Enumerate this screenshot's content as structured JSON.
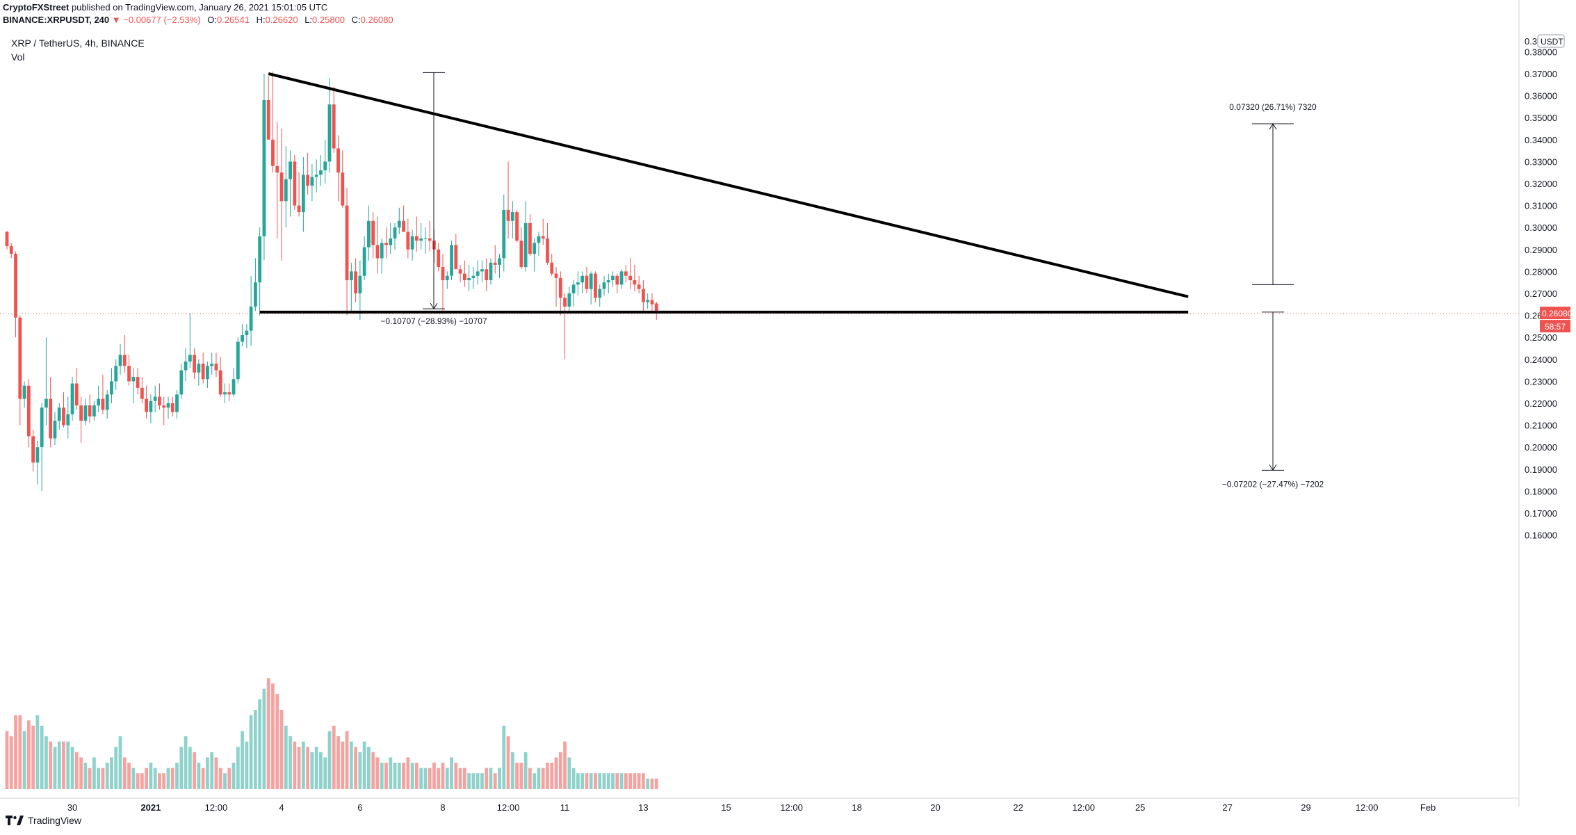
{
  "header": {
    "publisher": "CryptoFXStreet",
    "published_text": "published on TradingView.com, January 26, 2021 15:01:05 UTC",
    "symbol": "BINANCE:XRPUSDT, 240",
    "change": "▼ −0.00677 (−2.53%)",
    "open_label": "O:",
    "open": "0.26541",
    "high_label": "H:",
    "high": "0.26620",
    "low_label": "L:",
    "low": "0.25800",
    "close_label": "C:",
    "close": "0.26080"
  },
  "legend": {
    "title": "XRP / TetherUS, 4h, BINANCE",
    "volume": "Vol"
  },
  "footer": {
    "brand": "TradingView"
  },
  "colors": {
    "up": "#26a69a",
    "down": "#ef5350",
    "up_vol": "#8fd2cb",
    "down_vol": "#f5a3a1",
    "axis_text": "#131722",
    "trendline": "#000000"
  },
  "icons": {
    "footer_logo": "tradingview-logo-icon"
  },
  "chart_data": {
    "type": "candlestick",
    "currency": "USDT",
    "y_ticks": [
      "0.38000",
      "0.37000",
      "0.36000",
      "0.35000",
      "0.34000",
      "0.33000",
      "0.32000",
      "0.31000",
      "0.30000",
      "0.29000",
      "0.28000",
      "0.27000",
      "0.26000",
      "0.25000",
      "0.24000",
      "0.23000",
      "0.22000",
      "0.21000",
      "0.20000",
      "0.19000",
      "0.18000",
      "0.17000",
      "0.16000"
    ],
    "y_tick_top_partial": "0.3",
    "ylim": [
      0.1525,
      0.3935
    ],
    "x_ticks": [
      {
        "label": "30",
        "i": 15
      },
      {
        "label": "2021",
        "i": 33
      },
      {
        "label": "12:00",
        "i": 48
      },
      {
        "label": "4",
        "i": 63
      },
      {
        "label": "6",
        "i": 81
      },
      {
        "label": "8",
        "i": 100
      },
      {
        "label": "12:00",
        "i": 115
      },
      {
        "label": "11",
        "i": 128
      },
      {
        "label": "13",
        "i": 146
      },
      {
        "label": "15",
        "i": 165
      },
      {
        "label": "12:00",
        "i": 180
      },
      {
        "label": "18",
        "i": 195
      },
      {
        "label": "20",
        "i": 213
      },
      {
        "label": "22",
        "i": 232
      },
      {
        "label": "12:00",
        "i": 247
      },
      {
        "label": "25",
        "i": 260
      },
      {
        "label": "27",
        "i": 280
      },
      {
        "label": "29",
        "i": 298
      },
      {
        "label": "12:00",
        "i": 312
      },
      {
        "label": "Feb",
        "i": 326
      }
    ],
    "price_label": "0.26080",
    "countdown": "58:57",
    "candles": [
      [
        0.298,
        0.2985,
        0.29,
        0.2915,
        11
      ],
      [
        0.2915,
        0.293,
        0.286,
        0.288,
        10
      ],
      [
        0.288,
        0.289,
        0.25,
        0.259,
        14
      ],
      [
        0.259,
        0.26,
        0.21,
        0.222,
        14
      ],
      [
        0.222,
        0.23,
        0.218,
        0.228,
        11
      ],
      [
        0.228,
        0.231,
        0.2,
        0.205,
        13
      ],
      [
        0.205,
        0.208,
        0.189,
        0.193,
        12
      ],
      [
        0.193,
        0.203,
        0.183,
        0.2,
        14
      ],
      [
        0.2,
        0.22,
        0.18,
        0.218,
        12
      ],
      [
        0.218,
        0.25,
        0.21,
        0.222,
        10
      ],
      [
        0.222,
        0.232,
        0.2,
        0.204,
        9
      ],
      [
        0.204,
        0.216,
        0.201,
        0.212,
        8
      ],
      [
        0.212,
        0.22,
        0.208,
        0.218,
        9
      ],
      [
        0.218,
        0.225,
        0.209,
        0.21,
        9
      ],
      [
        0.21,
        0.223,
        0.204,
        0.215,
        9
      ],
      [
        0.215,
        0.232,
        0.212,
        0.229,
        8
      ],
      [
        0.229,
        0.236,
        0.217,
        0.219,
        7
      ],
      [
        0.219,
        0.223,
        0.202,
        0.212,
        6
      ],
      [
        0.212,
        0.222,
        0.21,
        0.219,
        5
      ],
      [
        0.219,
        0.224,
        0.211,
        0.214,
        4
      ],
      [
        0.214,
        0.221,
        0.212,
        0.219,
        6
      ],
      [
        0.219,
        0.228,
        0.216,
        0.222,
        4
      ],
      [
        0.222,
        0.233,
        0.215,
        0.217,
        4
      ],
      [
        0.217,
        0.226,
        0.213,
        0.224,
        5
      ],
      [
        0.224,
        0.236,
        0.22,
        0.23,
        6
      ],
      [
        0.23,
        0.24,
        0.226,
        0.237,
        8
      ],
      [
        0.237,
        0.247,
        0.233,
        0.242,
        10
      ],
      [
        0.242,
        0.251,
        0.234,
        0.237,
        6
      ],
      [
        0.237,
        0.242,
        0.228,
        0.23,
        5
      ],
      [
        0.23,
        0.236,
        0.22,
        0.232,
        4
      ],
      [
        0.232,
        0.236,
        0.224,
        0.227,
        3
      ],
      [
        0.227,
        0.232,
        0.22,
        0.222,
        3
      ],
      [
        0.222,
        0.228,
        0.213,
        0.216,
        4
      ],
      [
        0.216,
        0.224,
        0.211,
        0.221,
        5
      ],
      [
        0.221,
        0.228,
        0.216,
        0.223,
        4
      ],
      [
        0.223,
        0.229,
        0.217,
        0.219,
        3
      ],
      [
        0.219,
        0.223,
        0.21,
        0.218,
        3
      ],
      [
        0.218,
        0.223,
        0.213,
        0.22,
        4
      ],
      [
        0.22,
        0.223,
        0.214,
        0.216,
        4
      ],
      [
        0.216,
        0.226,
        0.213,
        0.224,
        5
      ],
      [
        0.224,
        0.238,
        0.222,
        0.235,
        8
      ],
      [
        0.235,
        0.245,
        0.23,
        0.239,
        10
      ],
      [
        0.239,
        0.261,
        0.236,
        0.242,
        8
      ],
      [
        0.242,
        0.245,
        0.231,
        0.234,
        7
      ],
      [
        0.234,
        0.24,
        0.228,
        0.238,
        5
      ],
      [
        0.238,
        0.243,
        0.229,
        0.231,
        4
      ],
      [
        0.231,
        0.239,
        0.227,
        0.237,
        6
      ],
      [
        0.237,
        0.243,
        0.233,
        0.238,
        7
      ],
      [
        0.238,
        0.243,
        0.232,
        0.235,
        6
      ],
      [
        0.235,
        0.241,
        0.223,
        0.224,
        4
      ],
      [
        0.224,
        0.229,
        0.22,
        0.225,
        3
      ],
      [
        0.225,
        0.229,
        0.221,
        0.224,
        4
      ],
      [
        0.224,
        0.236,
        0.223,
        0.231,
        5
      ],
      [
        0.231,
        0.25,
        0.229,
        0.248,
        8
      ],
      [
        0.248,
        0.256,
        0.246,
        0.251,
        11
      ],
      [
        0.251,
        0.256,
        0.245,
        0.253,
        9
      ],
      [
        0.253,
        0.278,
        0.246,
        0.264,
        14
      ],
      [
        0.264,
        0.286,
        0.262,
        0.275,
        15
      ],
      [
        0.275,
        0.3,
        0.26,
        0.296,
        17
      ],
      [
        0.296,
        0.37,
        0.285,
        0.358,
        19
      ],
      [
        0.358,
        0.369,
        0.34,
        0.34,
        21
      ],
      [
        0.34,
        0.371,
        0.325,
        0.328,
        20
      ],
      [
        0.328,
        0.348,
        0.295,
        0.325,
        18
      ],
      [
        0.325,
        0.345,
        0.285,
        0.312,
        15
      ],
      [
        0.312,
        0.337,
        0.3,
        0.322,
        12
      ],
      [
        0.322,
        0.335,
        0.305,
        0.33,
        10
      ],
      [
        0.33,
        0.333,
        0.308,
        0.31,
        9
      ],
      [
        0.31,
        0.325,
        0.305,
        0.307,
        8
      ],
      [
        0.307,
        0.332,
        0.298,
        0.324,
        9
      ],
      [
        0.324,
        0.334,
        0.315,
        0.319,
        8
      ],
      [
        0.319,
        0.329,
        0.312,
        0.323,
        7
      ],
      [
        0.323,
        0.331,
        0.316,
        0.324,
        8
      ],
      [
        0.324,
        0.333,
        0.319,
        0.326,
        7
      ],
      [
        0.326,
        0.34,
        0.32,
        0.33,
        6
      ],
      [
        0.33,
        0.368,
        0.325,
        0.356,
        11
      ],
      [
        0.356,
        0.364,
        0.334,
        0.336,
        12
      ],
      [
        0.336,
        0.342,
        0.312,
        0.325,
        10
      ],
      [
        0.325,
        0.335,
        0.309,
        0.31,
        9
      ],
      [
        0.31,
        0.318,
        0.26,
        0.276,
        11
      ],
      [
        0.276,
        0.284,
        0.261,
        0.28,
        9
      ],
      [
        0.28,
        0.286,
        0.266,
        0.27,
        8
      ],
      [
        0.27,
        0.285,
        0.258,
        0.278,
        7
      ],
      [
        0.278,
        0.296,
        0.276,
        0.291,
        9
      ],
      [
        0.291,
        0.31,
        0.285,
        0.303,
        8
      ],
      [
        0.303,
        0.307,
        0.286,
        0.292,
        7
      ],
      [
        0.292,
        0.305,
        0.279,
        0.286,
        6
      ],
      [
        0.286,
        0.295,
        0.279,
        0.293,
        5
      ],
      [
        0.293,
        0.3,
        0.286,
        0.292,
        5
      ],
      [
        0.292,
        0.302,
        0.288,
        0.295,
        6
      ],
      [
        0.295,
        0.302,
        0.29,
        0.3,
        5
      ],
      [
        0.3,
        0.309,
        0.297,
        0.303,
        5
      ],
      [
        0.303,
        0.31,
        0.298,
        0.298,
        5
      ],
      [
        0.298,
        0.304,
        0.286,
        0.29,
        6
      ],
      [
        0.29,
        0.299,
        0.285,
        0.296,
        5
      ],
      [
        0.296,
        0.305,
        0.289,
        0.294,
        5
      ],
      [
        0.294,
        0.302,
        0.29,
        0.295,
        4
      ],
      [
        0.295,
        0.3,
        0.288,
        0.295,
        4
      ],
      [
        0.295,
        0.303,
        0.289,
        0.294,
        4
      ],
      [
        0.294,
        0.299,
        0.284,
        0.29,
        5
      ],
      [
        0.29,
        0.293,
        0.28,
        0.282,
        4
      ],
      [
        0.282,
        0.288,
        0.261,
        0.276,
        5
      ],
      [
        0.276,
        0.28,
        0.272,
        0.278,
        4
      ],
      [
        0.278,
        0.294,
        0.276,
        0.292,
        6
      ],
      [
        0.292,
        0.297,
        0.282,
        0.281,
        5
      ],
      [
        0.281,
        0.283,
        0.275,
        0.279,
        4
      ],
      [
        0.279,
        0.285,
        0.273,
        0.276,
        4
      ],
      [
        0.276,
        0.283,
        0.271,
        0.277,
        3
      ],
      [
        0.277,
        0.282,
        0.272,
        0.278,
        3
      ],
      [
        0.278,
        0.285,
        0.274,
        0.28,
        3
      ],
      [
        0.28,
        0.285,
        0.275,
        0.281,
        3
      ],
      [
        0.281,
        0.286,
        0.271,
        0.276,
        4
      ],
      [
        0.276,
        0.286,
        0.274,
        0.284,
        4
      ],
      [
        0.284,
        0.292,
        0.279,
        0.283,
        3
      ],
      [
        0.283,
        0.288,
        0.277,
        0.286,
        4
      ],
      [
        0.286,
        0.315,
        0.28,
        0.308,
        12
      ],
      [
        0.308,
        0.33,
        0.295,
        0.303,
        10
      ],
      [
        0.303,
        0.312,
        0.295,
        0.307,
        7
      ],
      [
        0.307,
        0.308,
        0.293,
        0.294,
        5
      ],
      [
        0.294,
        0.3,
        0.281,
        0.282,
        5
      ],
      [
        0.282,
        0.312,
        0.28,
        0.302,
        7
      ],
      [
        0.302,
        0.306,
        0.287,
        0.288,
        4
      ],
      [
        0.288,
        0.295,
        0.28,
        0.293,
        3
      ],
      [
        0.293,
        0.298,
        0.287,
        0.296,
        4
      ],
      [
        0.296,
        0.304,
        0.292,
        0.295,
        4
      ],
      [
        0.295,
        0.302,
        0.283,
        0.284,
        5
      ],
      [
        0.284,
        0.288,
        0.278,
        0.279,
        5
      ],
      [
        0.279,
        0.282,
        0.264,
        0.277,
        6
      ],
      [
        0.277,
        0.28,
        0.26,
        0.268,
        7
      ],
      [
        0.268,
        0.27,
        0.24,
        0.264,
        9
      ],
      [
        0.264,
        0.273,
        0.262,
        0.27,
        6
      ],
      [
        0.27,
        0.276,
        0.264,
        0.274,
        4
      ],
      [
        0.274,
        0.28,
        0.269,
        0.275,
        3
      ],
      [
        0.275,
        0.28,
        0.27,
        0.278,
        3
      ],
      [
        0.278,
        0.282,
        0.27,
        0.272,
        3
      ],
      [
        0.272,
        0.28,
        0.265,
        0.279,
        3
      ],
      [
        0.279,
        0.28,
        0.266,
        0.268,
        3
      ],
      [
        0.268,
        0.274,
        0.264,
        0.272,
        3
      ],
      [
        0.272,
        0.278,
        0.269,
        0.275,
        3
      ],
      [
        0.275,
        0.279,
        0.27,
        0.276,
        3
      ],
      [
        0.276,
        0.28,
        0.273,
        0.278,
        3
      ],
      [
        0.278,
        0.279,
        0.27,
        0.274,
        3
      ],
      [
        0.274,
        0.281,
        0.272,
        0.28,
        3
      ],
      [
        0.28,
        0.283,
        0.275,
        0.278,
        3
      ],
      [
        0.278,
        0.286,
        0.272,
        0.276,
        3
      ],
      [
        0.276,
        0.283,
        0.271,
        0.274,
        3
      ],
      [
        0.274,
        0.278,
        0.27,
        0.272,
        3
      ],
      [
        0.272,
        0.276,
        0.262,
        0.266,
        3
      ],
      [
        0.266,
        0.27,
        0.263,
        0.267,
        2
      ],
      [
        0.267,
        0.27,
        0.262,
        0.265,
        2
      ],
      [
        0.2654,
        0.2662,
        0.258,
        0.2608,
        2
      ]
    ],
    "annotations": {
      "descending_trendline": {
        "from": {
          "i": 60,
          "price": 0.37
        },
        "to": {
          "i": 271,
          "price": 0.2685
        }
      },
      "support_line": {
        "from": {
          "i": 58,
          "price": 0.2615
        },
        "to": {
          "i": 271,
          "price": 0.2615
        }
      },
      "measure_top": {
        "label": "0.07320 (26.71%) 7320",
        "from_price": 0.274,
        "to_price": 0.3472
      },
      "measure_bottom": {
        "label": "−0.07202 (−27.47%) −7202",
        "from_price": 0.2615,
        "to_price": 0.1895
      },
      "measure_pattern": {
        "label": "−0.10707 (−28.93%) −10707",
        "from_price": 0.3705,
        "to_price": 0.263
      }
    }
  }
}
